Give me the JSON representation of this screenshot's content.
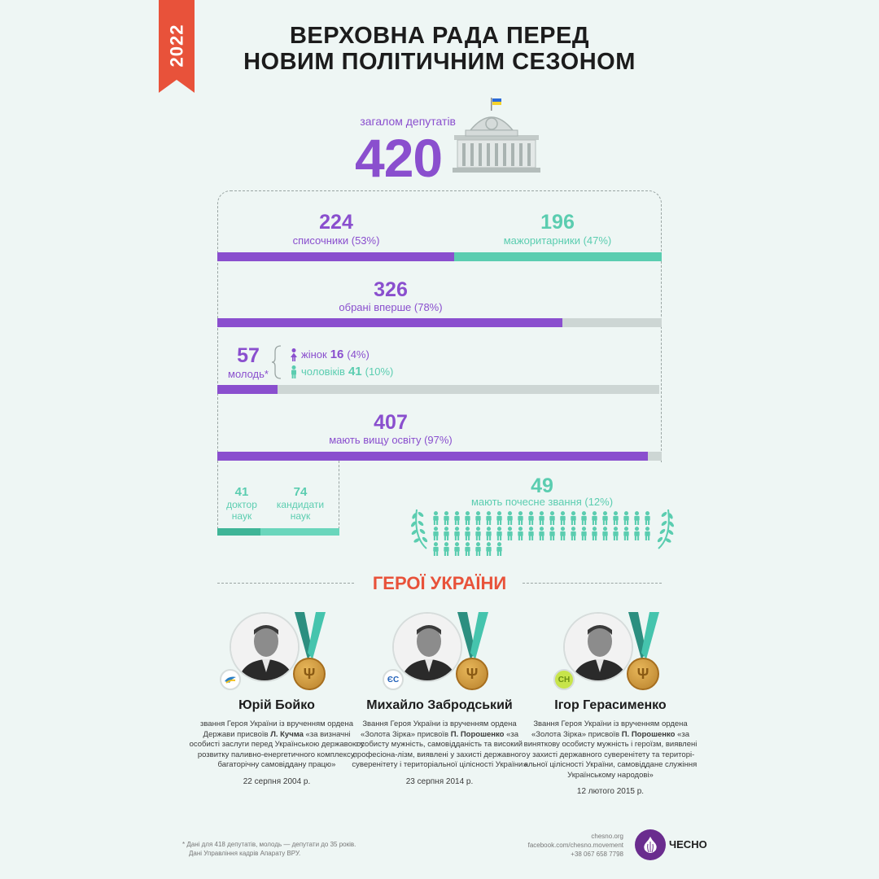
{
  "header": {
    "year": "2022",
    "title_line1": "ВЕРХОВНА РАДА ПЕРЕД",
    "title_line2": "НОВИМ ПОЛІТИЧНИМ СЕЗОНОМ"
  },
  "total": {
    "label": "загалом депутатів",
    "value": "420"
  },
  "stats": {
    "list": {
      "value": "224",
      "label": "списочники (53%)"
    },
    "majority": {
      "value": "196",
      "label": "мажоритарники (47%)"
    },
    "first_time": {
      "value": "326",
      "label": "обрані вперше (78%)"
    },
    "youth": {
      "value": "57",
      "label": "молодь*",
      "women_label": "жінок",
      "women_value": "16",
      "women_pct": "(4%)",
      "men_label": "чоловіків",
      "men_value": "41",
      "men_pct": "(10%)"
    },
    "higher_ed": {
      "value": "407",
      "label": "мають вищу освіту (97%)"
    },
    "doctors": {
      "value": "41",
      "label": "доктор наук"
    },
    "candidates": {
      "value": "74",
      "label": "кандидати наук"
    },
    "honorary": {
      "value": "49",
      "label": "мають почесне звання (12%)"
    }
  },
  "chart_data": {
    "type": "bar",
    "title": "ВЕРХОВНА РАДА ПЕРЕД НОВИМ ПОЛІТИЧНИМ СЕЗОНОМ",
    "total": 420,
    "series": [
      {
        "name": "списочники",
        "value": 224,
        "percent": 53
      },
      {
        "name": "мажоритарники",
        "value": 196,
        "percent": 47
      },
      {
        "name": "обрані вперше",
        "value": 326,
        "percent": 78
      },
      {
        "name": "молодь",
        "value": 57,
        "percent": 14
      },
      {
        "name": "жінок",
        "value": 16,
        "percent": 4
      },
      {
        "name": "чоловіків",
        "value": 41,
        "percent": 10
      },
      {
        "name": "мають вищу освіту",
        "value": 407,
        "percent": 97
      },
      {
        "name": "доктор наук",
        "value": 41
      },
      {
        "name": "кандидати наук",
        "value": 74
      },
      {
        "name": "мають почесне звання",
        "value": 49,
        "percent": 12
      }
    ]
  },
  "colors": {
    "purple": "#8a4fce",
    "teal": "#5bcdb0",
    "grey": "#cdd6d4",
    "red": "#e8523a"
  },
  "heroes": {
    "title": "ГЕРОЇ УКРАЇНИ",
    "items": [
      {
        "party": "bird-logo",
        "name": "Юрій Бойко",
        "desc_pre": "звання Героя України із врученням ордена Держави присвоїв ",
        "desc_bold": "Л. Кучма",
        "desc_post": " «за визначні особисті заслуги перед Українською державою у розвитку паливно-енергетичного комплексу, багаторічну самовіддану працю»",
        "date": "22 серпня 2004 р."
      },
      {
        "party": "ЄС",
        "name": "Михайло Забродський",
        "desc_pre": "Звання Героя України із врученням ордена «Золота Зірка» присвоїв ",
        "desc_bold": "П. Порошенко",
        "desc_post": " «за особисту мужність, самовідданість та високий професіона-лізм, виявлені у захисті державного суверенітету і територіальної цілісності України»",
        "date": "23 серпня 2014 р."
      },
      {
        "party": "СН",
        "name": "Ігор Герасименко",
        "desc_pre": "Звання Героя України із врученням ордена «Золота Зірка» присвоїв ",
        "desc_bold": "П. Порошенко",
        "desc_post": " «за виняткову особисту мужність і героїзм, виявлені у захисті державного суверенітету та територі-альної цілісності України, самовіддане служіння Українському народові»",
        "date": "12 лютого 2015 р."
      }
    ]
  },
  "footer": {
    "note1": "* Дані для 418 депутатів, молодь — депутати до 35 років.",
    "note2": "Дані Управління кадрів Апарату ВРУ.",
    "site": "chesno.org",
    "facebook": "facebook.com/chesno.movement",
    "phone": "+38 067 658 7798",
    "brand": "ЧЕСНО"
  }
}
